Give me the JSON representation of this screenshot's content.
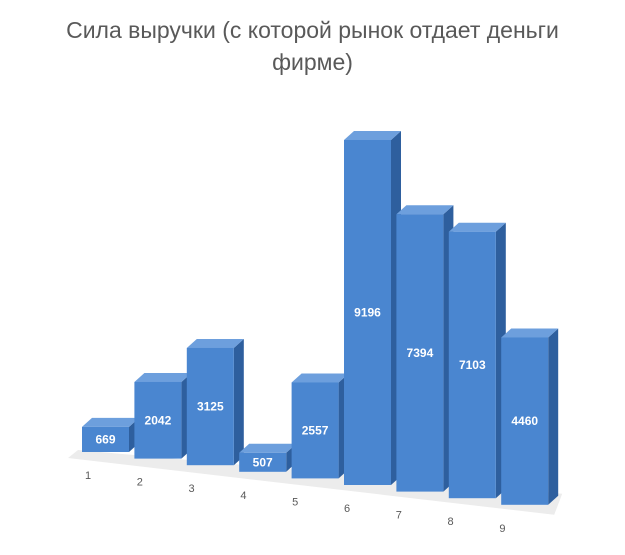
{
  "chart_data": {
    "type": "bar",
    "title": "Сила выручки (с которой рынок отдает деньги фирме)",
    "categories": [
      "1",
      "2",
      "3",
      "4",
      "5",
      "6",
      "7",
      "8",
      "9"
    ],
    "values": [
      669,
      2042,
      3125,
      507,
      2557,
      9196,
      7394,
      7103,
      4460
    ],
    "xlabel": "",
    "ylabel": "",
    "ylim": [
      0,
      9196
    ],
    "grid": false,
    "legend": "none",
    "style": "3d-column",
    "colors": {
      "front": "#4a86d0",
      "side": "#2e5f9e",
      "top": "#6d9fdd",
      "floor": "#ececec",
      "text": "#595959",
      "data_label": "#ffffff"
    }
  }
}
